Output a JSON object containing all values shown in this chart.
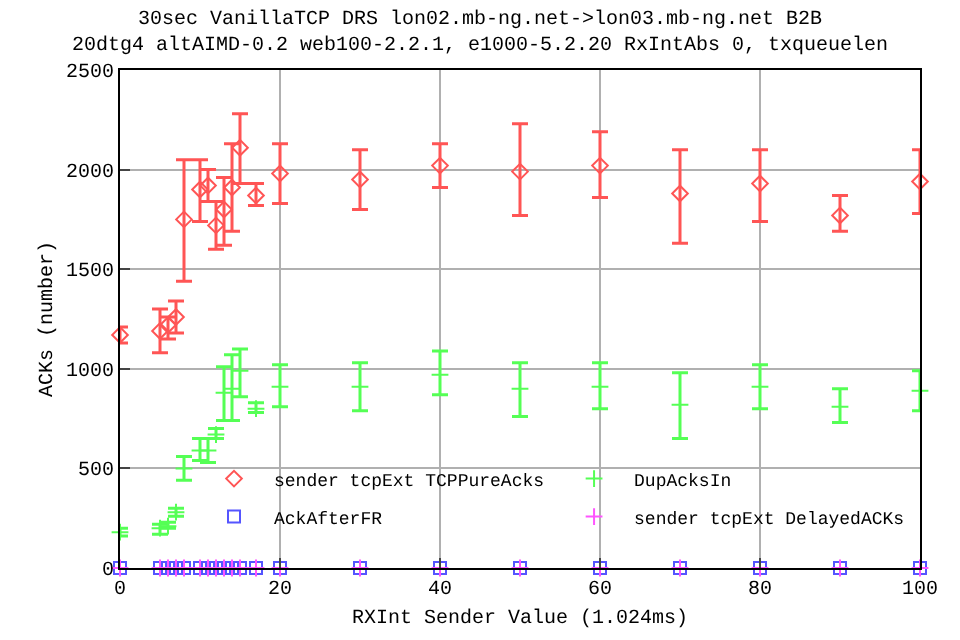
{
  "chart_data": {
    "type": "scatter",
    "title": "30sec VanillaTCP DRS lon02.mb-ng.net->lon03.mb-ng.net B2B\n20dtg4 altAIMD-0.2 web100-2.2.1, e1000-5.2.20 RxIntAbs 0, txqueuelen",
    "xlabel": "RXInt Sender Value (1.024ms)",
    "ylabel": "ACKs (number)",
    "x": [
      0,
      5,
      6,
      7,
      8,
      10,
      11,
      12,
      13,
      14,
      15,
      17,
      20,
      30,
      40,
      50,
      60,
      70,
      80,
      90,
      100
    ],
    "series": [
      {
        "name": "sender tcpExt TCPPureAcks",
        "color": "#ff5555",
        "marker": "diamond",
        "values": [
          1170,
          1190,
          1220,
          1260,
          1750,
          1900,
          1920,
          1720,
          1800,
          1910,
          2110,
          1870,
          1980,
          1950,
          2020,
          1990,
          2020,
          1880,
          1930,
          1770,
          1940
        ],
        "errors": [
          [
            1130,
            1210
          ],
          [
            1080,
            1300
          ],
          [
            1150,
            1260
          ],
          [
            1180,
            1340
          ],
          [
            1440,
            2050
          ],
          [
            1740,
            2050
          ],
          [
            1840,
            2000
          ],
          [
            1600,
            1840
          ],
          [
            1620,
            1960
          ],
          [
            1690,
            2130
          ],
          [
            1930,
            2280
          ],
          [
            1820,
            1930
          ],
          [
            1830,
            2130
          ],
          [
            1800,
            2100
          ],
          [
            1910,
            2130
          ],
          [
            1770,
            2230
          ],
          [
            1860,
            2190
          ],
          [
            1630,
            2100
          ],
          [
            1740,
            2100
          ],
          [
            1690,
            1870
          ],
          [
            1780,
            2100
          ]
        ]
      },
      {
        "name": "DupAcksIn",
        "color": "#55ff55",
        "marker": "cross",
        "values": [
          180,
          200,
          210,
          280,
          500,
          590,
          590,
          670,
          880,
          900,
          990,
          800,
          910,
          910,
          970,
          900,
          910,
          820,
          910,
          810,
          890
        ],
        "errors": [
          [
            160,
            200
          ],
          [
            170,
            220
          ],
          [
            200,
            230
          ],
          [
            260,
            300
          ],
          [
            440,
            560
          ],
          [
            540,
            650
          ],
          [
            530,
            650
          ],
          [
            650,
            700
          ],
          [
            740,
            1010
          ],
          [
            740,
            1070
          ],
          [
            860,
            1100
          ],
          [
            780,
            830
          ],
          [
            810,
            1020
          ],
          [
            790,
            1030
          ],
          [
            870,
            1090
          ],
          [
            760,
            1030
          ],
          [
            800,
            1030
          ],
          [
            650,
            980
          ],
          [
            800,
            1020
          ],
          [
            730,
            900
          ],
          [
            790,
            990
          ]
        ]
      },
      {
        "name": "AckAfterFR",
        "color": "#5555ff",
        "marker": "square",
        "values": [
          0,
          0,
          0,
          0,
          0,
          0,
          0,
          0,
          0,
          0,
          0,
          0,
          0,
          0,
          0,
          0,
          0,
          0,
          0,
          0,
          0
        ]
      },
      {
        "name": "sender tcpExt DelayedACKs",
        "color": "#ff55ff",
        "marker": "cross",
        "values": [
          0,
          0,
          0,
          0,
          0,
          0,
          0,
          0,
          0,
          0,
          0,
          0,
          0,
          0,
          0,
          0,
          0,
          0,
          0,
          0,
          0
        ]
      }
    ],
    "xlim": [
      0,
      100
    ],
    "xticks": [
      0,
      20,
      40,
      60,
      80,
      100
    ],
    "ylim": [
      0,
      2500
    ],
    "yticks": [
      0,
      500,
      1000,
      1500,
      2000,
      2500
    ],
    "grid": true,
    "legend": "bottom right",
    "line_style": "none"
  }
}
